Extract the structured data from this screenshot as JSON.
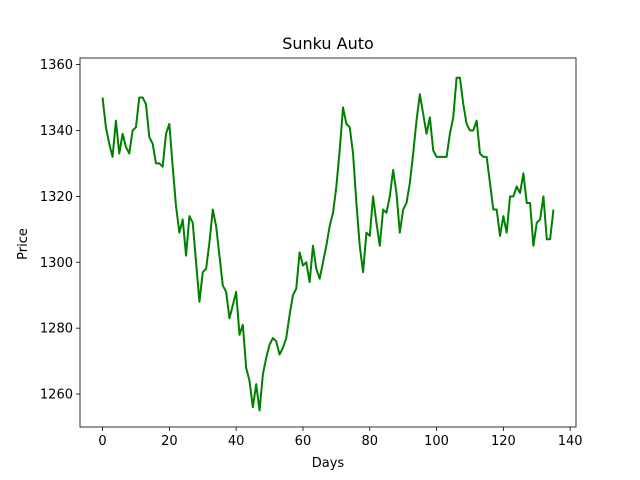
{
  "chart_data": {
    "type": "line",
    "title": "Sunku Auto",
    "xlabel": "Days",
    "ylabel": "Price",
    "xlim": [
      -6.75,
      141.75
    ],
    "ylim": [
      1250,
      1362
    ],
    "x_ticks": [
      0,
      20,
      40,
      60,
      80,
      100,
      120,
      140
    ],
    "y_ticks": [
      1260,
      1280,
      1300,
      1320,
      1340,
      1360
    ],
    "grid": false,
    "legend": "none",
    "series": [
      {
        "color": "#008000",
        "x": [
          0,
          1,
          2,
          3,
          4,
          5,
          6,
          7,
          8,
          9,
          10,
          11,
          12,
          13,
          14,
          15,
          16,
          17,
          18,
          19,
          20,
          21,
          22,
          23,
          24,
          25,
          26,
          27,
          28,
          29,
          30,
          31,
          32,
          33,
          34,
          35,
          36,
          37,
          38,
          39,
          40,
          41,
          42,
          43,
          44,
          45,
          46,
          47,
          48,
          49,
          50,
          51,
          52,
          53,
          54,
          55,
          56,
          57,
          58,
          59,
          60,
          61,
          62,
          63,
          64,
          65,
          66,
          67,
          68,
          69,
          70,
          71,
          72,
          73,
          74,
          75,
          76,
          77,
          78,
          79,
          80,
          81,
          82,
          83,
          84,
          85,
          86,
          87,
          88,
          89,
          90,
          91,
          92,
          93,
          94,
          95,
          96,
          97,
          98,
          99,
          100,
          101,
          102,
          103,
          104,
          105,
          106,
          107,
          108,
          109,
          110,
          111,
          112,
          113,
          114,
          115,
          116,
          117,
          118,
          119,
          120,
          121,
          122,
          123,
          124,
          125,
          126,
          127,
          128,
          129,
          130,
          131,
          132,
          133,
          134,
          135
        ],
        "values": [
          1350,
          1341,
          1336,
          1332,
          1343,
          1333,
          1339,
          1335,
          1333,
          1340,
          1341,
          1350,
          1350,
          1348,
          1338,
          1336,
          1330,
          1330,
          1329,
          1339,
          1342,
          1329,
          1317,
          1309,
          1313,
          1302,
          1314,
          1312,
          1300,
          1288,
          1297,
          1298,
          1306,
          1316,
          1311,
          1302,
          1293,
          1291,
          1283,
          1287,
          1291,
          1278,
          1281,
          1268,
          1264,
          1256,
          1263,
          1255,
          1266,
          1271,
          1275,
          1277,
          1276,
          1272,
          1274,
          1277,
          1284,
          1290,
          1292,
          1303,
          1299,
          1300,
          1294,
          1305,
          1298,
          1295,
          1300,
          1305,
          1311,
          1315,
          1323,
          1334,
          1347,
          1342,
          1341,
          1333,
          1318,
          1305,
          1297,
          1309,
          1308,
          1320,
          1312,
          1305,
          1316,
          1315,
          1320,
          1328,
          1321,
          1309,
          1316,
          1318,
          1324,
          1333,
          1343,
          1351,
          1345,
          1339,
          1344,
          1334,
          1332,
          1332,
          1332,
          1332,
          1339,
          1344,
          1356,
          1356,
          1348,
          1342,
          1340,
          1340,
          1343,
          1333,
          1332,
          1332,
          1324,
          1316,
          1316,
          1308,
          1314,
          1309,
          1320,
          1320,
          1323,
          1321,
          1327,
          1318,
          1318,
          1305,
          1312,
          1313,
          1320,
          1307,
          1307,
          1316
        ]
      }
    ]
  }
}
